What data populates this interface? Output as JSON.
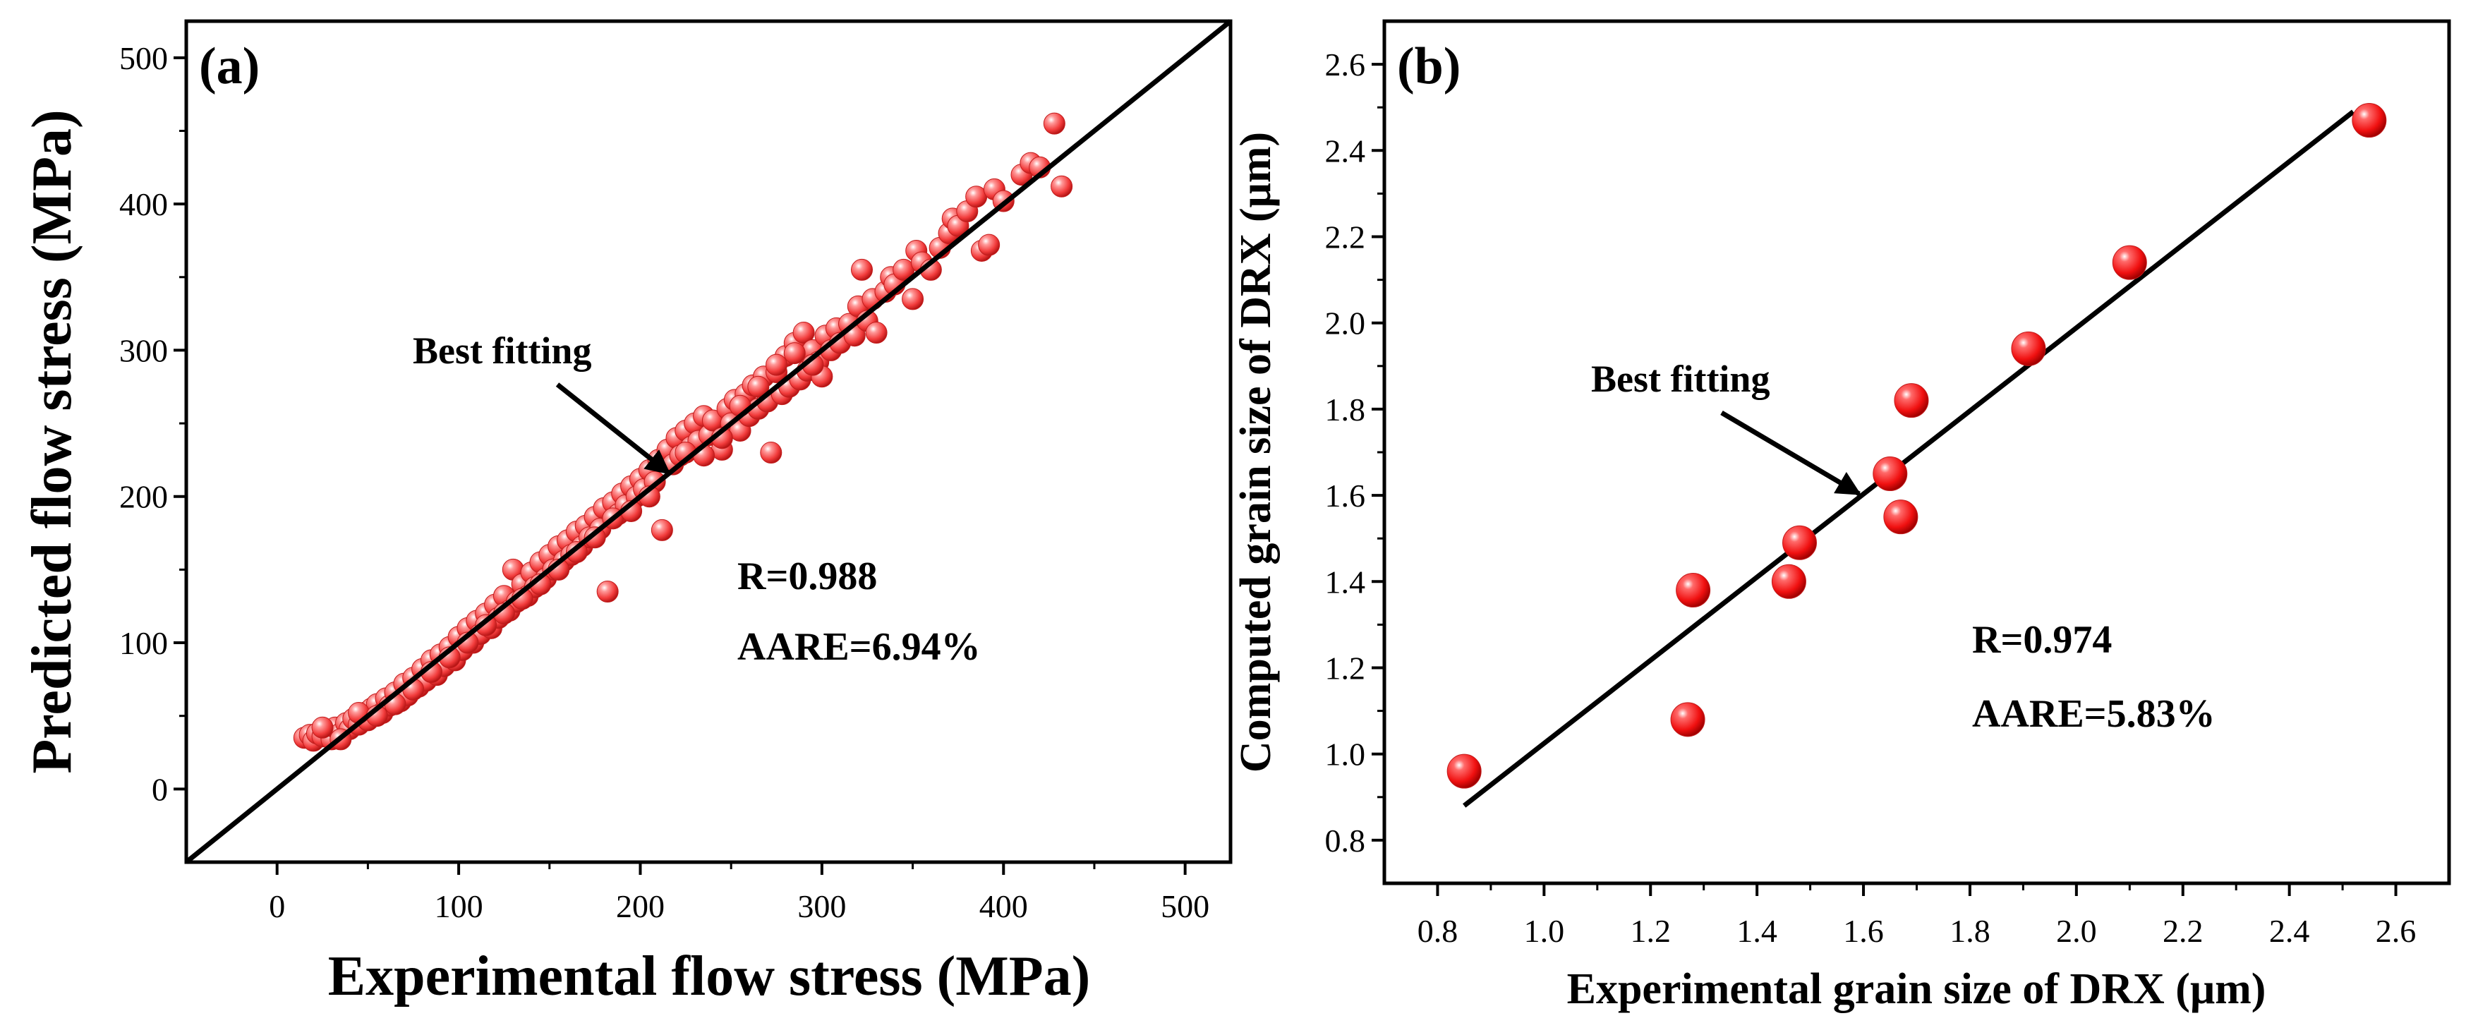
{
  "chart_data": [
    {
      "type": "scatter",
      "panel_label": "(a)",
      "xlabel": "Experimental flow stress (MPa)",
      "ylabel": "Predicted flow stress (MPa)",
      "xlim": [
        -50,
        525
      ],
      "ylim": [
        -50,
        525
      ],
      "xticks": [
        "0",
        "100",
        "200",
        "300",
        "400",
        "500"
      ],
      "yticks": [
        "0",
        "100",
        "200",
        "300",
        "400",
        "500"
      ],
      "xtick_values": [
        0,
        100,
        200,
        300,
        400,
        500
      ],
      "ytick_values": [
        0,
        100,
        200,
        300,
        400,
        500
      ],
      "fit_line": {
        "x": [
          -50,
          525
        ],
        "y": [
          -50,
          525
        ]
      },
      "annotation": {
        "text": "Best fitting",
        "target": [
          218,
          218
        ]
      },
      "stats": {
        "r": "R=0.988",
        "aare": "AARE=6.94%"
      },
      "marker_color": "#ff4a4a",
      "points": [
        [
          15,
          35
        ],
        [
          18,
          37
        ],
        [
          20,
          33
        ],
        [
          22,
          38
        ],
        [
          25,
          36
        ],
        [
          28,
          40
        ],
        [
          30,
          34
        ],
        [
          32,
          42
        ],
        [
          35,
          38
        ],
        [
          38,
          45
        ],
        [
          40,
          41
        ],
        [
          42,
          48
        ],
        [
          45,
          44
        ],
        [
          48,
          52
        ],
        [
          50,
          47
        ],
        [
          52,
          55
        ],
        [
          55,
          58
        ],
        [
          58,
          52
        ],
        [
          60,
          62
        ],
        [
          62,
          57
        ],
        [
          65,
          66
        ],
        [
          68,
          60
        ],
        [
          70,
          72
        ],
        [
          72,
          64
        ],
        [
          75,
          76
        ],
        [
          78,
          70
        ],
        [
          80,
          82
        ],
        [
          82,
          74
        ],
        [
          85,
          88
        ],
        [
          88,
          78
        ],
        [
          90,
          92
        ],
        [
          92,
          84
        ],
        [
          95,
          97
        ],
        [
          98,
          88
        ],
        [
          100,
          104
        ],
        [
          102,
          95
        ],
        [
          105,
          110
        ],
        [
          108,
          100
        ],
        [
          110,
          115
        ],
        [
          112,
          106
        ],
        [
          115,
          120
        ],
        [
          118,
          110
        ],
        [
          120,
          126
        ],
        [
          122,
          117
        ],
        [
          125,
          132
        ],
        [
          128,
          122
        ],
        [
          130,
          150
        ],
        [
          132,
          128
        ],
        [
          135,
          140
        ],
        [
          138,
          132
        ],
        [
          140,
          148
        ],
        [
          142,
          138
        ],
        [
          145,
          155
        ],
        [
          148,
          144
        ],
        [
          150,
          160
        ],
        [
          152,
          150
        ],
        [
          155,
          166
        ],
        [
          158,
          156
        ],
        [
          160,
          170
        ],
        [
          162,
          160
        ],
        [
          165,
          176
        ],
        [
          168,
          166
        ],
        [
          170,
          180
        ],
        [
          172,
          172
        ],
        [
          175,
          186
        ],
        [
          178,
          178
        ],
        [
          180,
          192
        ],
        [
          182,
          135
        ],
        [
          185,
          196
        ],
        [
          188,
          188
        ],
        [
          190,
          202
        ],
        [
          192,
          194
        ],
        [
          195,
          207
        ],
        [
          198,
          200
        ],
        [
          200,
          212
        ],
        [
          202,
          205
        ],
        [
          205,
          218
        ],
        [
          208,
          210
        ],
        [
          210,
          225
        ],
        [
          212,
          177
        ],
        [
          215,
          232
        ],
        [
          218,
          222
        ],
        [
          220,
          240
        ],
        [
          222,
          228
        ],
        [
          225,
          245
        ],
        [
          228,
          234
        ],
        [
          230,
          250
        ],
        [
          232,
          238
        ],
        [
          235,
          255
        ],
        [
          238,
          242
        ],
        [
          240,
          252
        ],
        [
          245,
          232
        ],
        [
          248,
          260
        ],
        [
          250,
          250
        ],
        [
          252,
          266
        ],
        [
          255,
          245
        ],
        [
          258,
          270
        ],
        [
          260,
          255
        ],
        [
          262,
          276
        ],
        [
          265,
          260
        ],
        [
          268,
          282
        ],
        [
          270,
          265
        ],
        [
          272,
          230
        ],
        [
          275,
          285
        ],
        [
          278,
          270
        ],
        [
          280,
          296
        ],
        [
          282,
          275
        ],
        [
          285,
          305
        ],
        [
          288,
          280
        ],
        [
          290,
          312
        ],
        [
          292,
          286
        ],
        [
          295,
          300
        ],
        [
          298,
          292
        ],
        [
          300,
          282
        ],
        [
          302,
          310
        ],
        [
          305,
          300
        ],
        [
          308,
          315
        ],
        [
          310,
          305
        ],
        [
          315,
          318
        ],
        [
          318,
          310
        ],
        [
          320,
          330
        ],
        [
          322,
          355
        ],
        [
          325,
          320
        ],
        [
          328,
          335
        ],
        [
          330,
          312
        ],
        [
          335,
          340
        ],
        [
          338,
          350
        ],
        [
          340,
          345
        ],
        [
          345,
          355
        ],
        [
          350,
          335
        ],
        [
          352,
          368
        ],
        [
          355,
          360
        ],
        [
          360,
          355
        ],
        [
          365,
          370
        ],
        [
          370,
          380
        ],
        [
          372,
          390
        ],
        [
          375,
          385
        ],
        [
          380,
          395
        ],
        [
          385,
          405
        ],
        [
          388,
          368
        ],
        [
          392,
          372
        ],
        [
          395,
          410
        ],
        [
          400,
          402
        ],
        [
          410,
          420
        ],
        [
          415,
          428
        ],
        [
          420,
          425
        ],
        [
          428,
          455
        ],
        [
          432,
          412
        ],
        [
          25,
          42
        ],
        [
          35,
          34
        ],
        [
          45,
          52
        ],
        [
          55,
          50
        ],
        [
          65,
          58
        ],
        [
          75,
          68
        ],
        [
          85,
          80
        ],
        [
          95,
          90
        ],
        [
          105,
          100
        ],
        [
          115,
          112
        ],
        [
          125,
          120
        ],
        [
          135,
          130
        ],
        [
          145,
          140
        ],
        [
          155,
          150
        ],
        [
          165,
          162
        ],
        [
          175,
          172
        ],
        [
          185,
          185
        ],
        [
          195,
          190
        ],
        [
          205,
          200
        ],
        [
          225,
          230
        ],
        [
          235,
          228
        ],
        [
          245,
          240
        ],
        [
          255,
          262
        ],
        [
          265,
          275
        ],
        [
          275,
          290
        ],
        [
          285,
          298
        ],
        [
          295,
          290
        ]
      ]
    },
    {
      "type": "scatter",
      "panel_label": "(b)",
      "xlabel": "Experimental grain size of DRX (μm)",
      "ylabel": "Computed grain size of DRX (μm)",
      "xlim": [
        0.7,
        2.7
      ],
      "ylim": [
        0.7,
        2.7
      ],
      "xticks": [
        "0.8",
        "1.0",
        "1.2",
        "1.4",
        "1.6",
        "1.8",
        "2.0",
        "2.2",
        "2.4",
        "2.6"
      ],
      "yticks": [
        "0.8",
        "1.0",
        "1.2",
        "1.4",
        "1.6",
        "1.8",
        "2.0",
        "2.2",
        "2.4",
        "2.6"
      ],
      "xtick_values": [
        0.8,
        1.0,
        1.2,
        1.4,
        1.6,
        1.8,
        2.0,
        2.2,
        2.4,
        2.6
      ],
      "ytick_values": [
        0.8,
        1.0,
        1.2,
        1.4,
        1.6,
        1.8,
        2.0,
        2.2,
        2.4,
        2.6
      ],
      "fit_line": {
        "x": [
          0.85,
          2.52
        ],
        "y": [
          0.88,
          2.49
        ]
      },
      "annotation": {
        "text": "Best fitting",
        "target": [
          1.6,
          1.61
        ]
      },
      "stats": {
        "r": "R=0.974",
        "aare": "AARE=5.83%"
      },
      "marker_color": "#ff1a1a",
      "points": [
        [
          0.85,
          0.96
        ],
        [
          1.27,
          1.08
        ],
        [
          1.28,
          1.38
        ],
        [
          1.46,
          1.4
        ],
        [
          1.48,
          1.49
        ],
        [
          1.65,
          1.65
        ],
        [
          1.67,
          1.55
        ],
        [
          1.69,
          1.82
        ],
        [
          1.91,
          1.94
        ],
        [
          2.1,
          2.14
        ],
        [
          2.55,
          2.47
        ]
      ]
    }
  ]
}
